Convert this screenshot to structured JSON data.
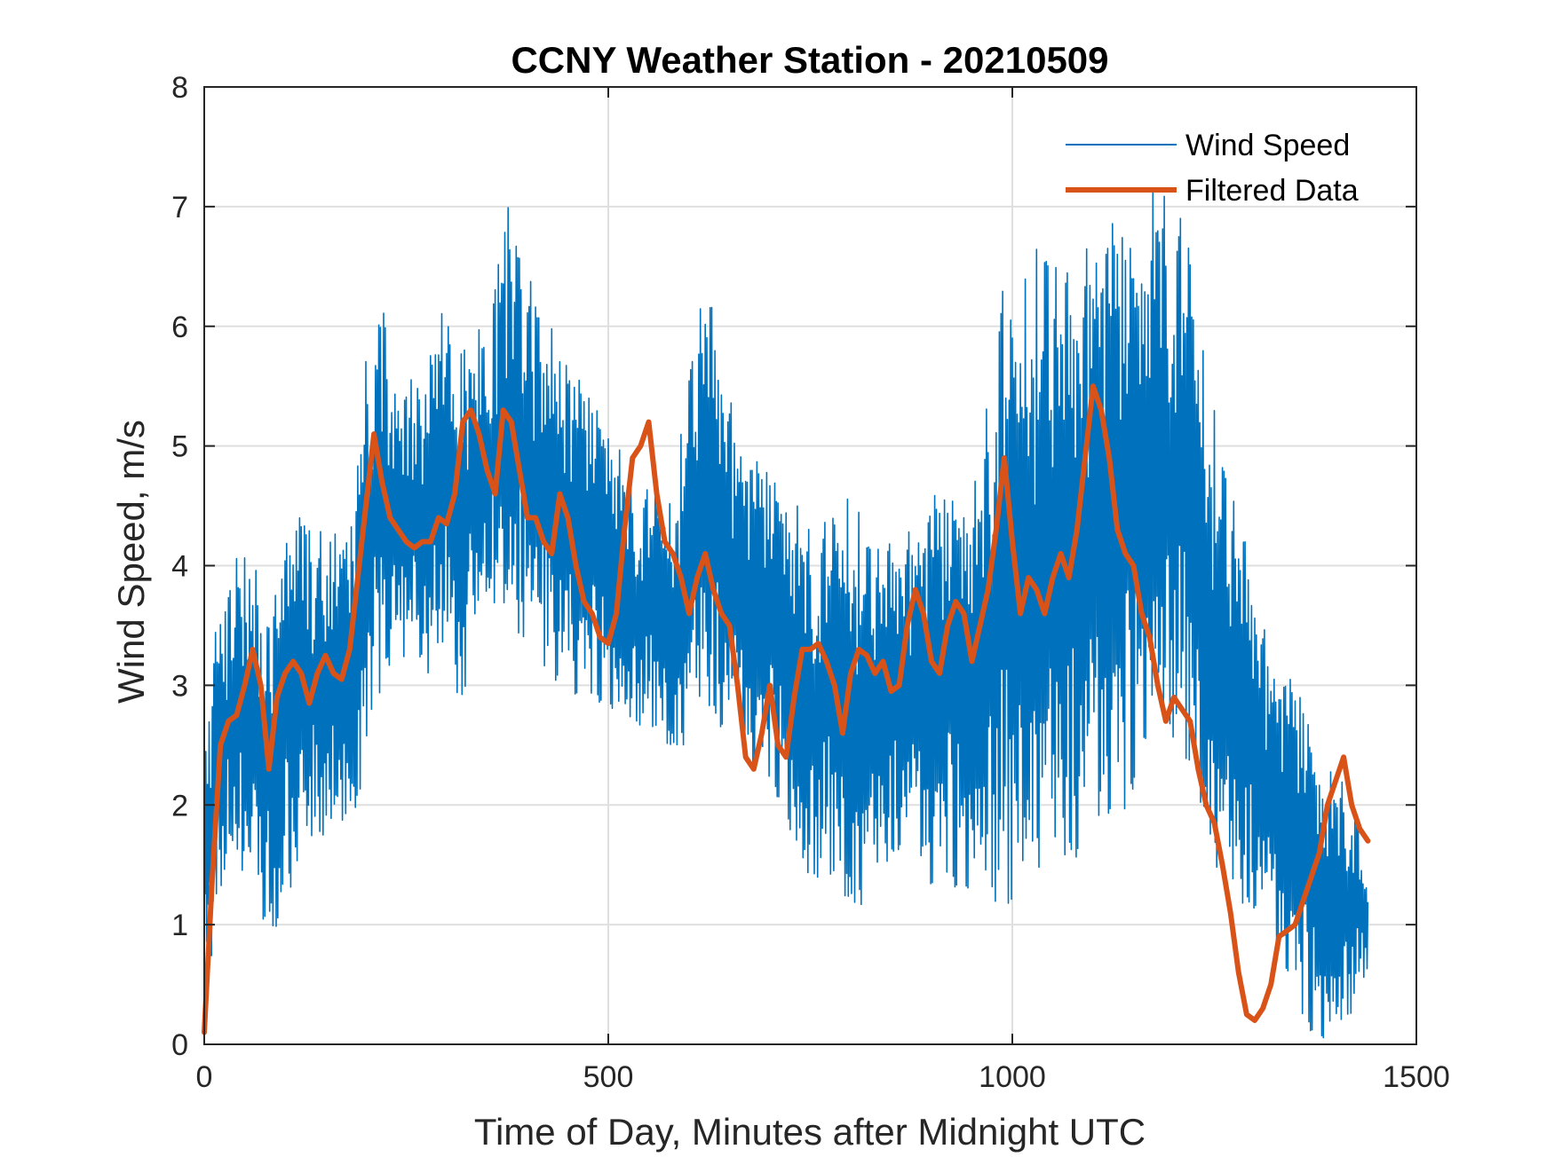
{
  "chart_data": {
    "type": "line",
    "title": "CCNY Weather Station - 20210509",
    "xlabel": "Time of Day, Minutes after Midnight UTC",
    "ylabel": "Wind Speed, m/s",
    "xlim": [
      0,
      1500
    ],
    "ylim": [
      0,
      8
    ],
    "xticks": [
      0,
      500,
      1000,
      1500
    ],
    "yticks": [
      0,
      1,
      2,
      3,
      4,
      5,
      6,
      7,
      8
    ],
    "xtick_labels": [
      "0",
      "500",
      "1000",
      "1500"
    ],
    "ytick_labels": [
      "0",
      "1",
      "2",
      "3",
      "4",
      "5",
      "6",
      "7",
      "8"
    ],
    "grid": true,
    "legend_position": "top-right",
    "colors": {
      "raw": "#0072BD",
      "filtered": "#D95319",
      "grid": "#DFDFDF",
      "axes": "#262626"
    },
    "series": [
      {
        "name": "Wind Speed",
        "style": "thin",
        "sample_step_minutes": 1,
        "envelope_x": [
          0,
          20,
          40,
          60,
          80,
          100,
          120,
          140,
          160,
          180,
          200,
          220,
          240,
          260,
          280,
          300,
          320,
          340,
          360,
          380,
          400,
          420,
          440,
          460,
          480,
          500,
          520,
          540,
          560,
          580,
          600,
          620,
          640,
          660,
          680,
          700,
          720,
          740,
          760,
          780,
          800,
          820,
          840,
          860,
          880,
          900,
          920,
          940,
          960,
          980,
          1000,
          1020,
          1040,
          1060,
          1080,
          1100,
          1120,
          1140,
          1160,
          1180,
          1200,
          1220,
          1240,
          1260,
          1280,
          1300,
          1320,
          1340,
          1360,
          1380,
          1400,
          1420,
          1440
        ],
        "envelope_min": [
          0.2,
          1.2,
          1.5,
          1.3,
          0.8,
          1.1,
          1.5,
          1.6,
          1.9,
          1.8,
          2.3,
          3.0,
          3.2,
          3.1,
          3.1,
          3.2,
          2.6,
          3.4,
          3.6,
          3.4,
          3.3,
          3.1,
          3.0,
          2.9,
          2.9,
          2.8,
          2.6,
          2.6,
          2.5,
          2.3,
          2.6,
          2.9,
          2.6,
          2.5,
          2.3,
          2.2,
          1.9,
          1.2,
          1.3,
          1.2,
          0.9,
          1.3,
          1.5,
          1.6,
          1.6,
          1.3,
          1.4,
          1.2,
          1.3,
          1.0,
          0.8,
          1.4,
          1.5,
          1.6,
          1.5,
          1.7,
          1.9,
          1.9,
          2.4,
          2.6,
          2.4,
          2.0,
          1.6,
          1.4,
          1.2,
          1.1,
          0.9,
          0.6,
          0.2,
          0.0,
          0.0,
          0.2,
          0.6
        ],
        "envelope_max": [
          2.7,
          3.8,
          4.2,
          4.0,
          3.9,
          4.2,
          4.5,
          4.4,
          4.3,
          4.2,
          5.8,
          6.2,
          5.9,
          5.7,
          5.8,
          6.3,
          6.2,
          6.0,
          6.4,
          7.2,
          6.5,
          6.2,
          5.9,
          5.6,
          5.4,
          5.2,
          4.9,
          4.7,
          4.6,
          4.5,
          5.7,
          6.5,
          5.7,
          5.2,
          4.9,
          4.8,
          4.6,
          4.5,
          4.4,
          4.4,
          4.6,
          4.3,
          4.2,
          4.2,
          4.4,
          4.6,
          4.6,
          4.6,
          4.8,
          6.6,
          6.0,
          6.5,
          6.8,
          6.6,
          6.3,
          7.0,
          6.9,
          6.8,
          6.6,
          7.4,
          7.2,
          6.6,
          5.6,
          5.0,
          4.5,
          3.8,
          3.3,
          3.1,
          2.9,
          2.3,
          2.3,
          2.3,
          1.2
        ]
      },
      {
        "name": "Filtered Data",
        "style": "thick",
        "x": [
          0,
          10,
          20,
          30,
          40,
          50,
          60,
          70,
          80,
          90,
          100,
          110,
          120,
          130,
          140,
          150,
          160,
          170,
          180,
          190,
          200,
          210,
          220,
          230,
          240,
          250,
          260,
          270,
          280,
          290,
          300,
          310,
          320,
          330,
          340,
          350,
          360,
          370,
          380,
          390,
          400,
          410,
          420,
          430,
          440,
          450,
          460,
          470,
          480,
          490,
          500,
          510,
          520,
          530,
          540,
          550,
          560,
          570,
          580,
          590,
          600,
          610,
          620,
          630,
          640,
          650,
          660,
          670,
          680,
          690,
          700,
          710,
          720,
          730,
          740,
          750,
          760,
          770,
          780,
          790,
          800,
          810,
          820,
          830,
          840,
          850,
          860,
          870,
          880,
          890,
          900,
          910,
          920,
          930,
          940,
          950,
          960,
          970,
          980,
          990,
          1000,
          1010,
          1020,
          1030,
          1040,
          1050,
          1060,
          1070,
          1080,
          1090,
          1100,
          1110,
          1120,
          1130,
          1140,
          1150,
          1160,
          1170,
          1180,
          1190,
          1200,
          1210,
          1220,
          1230,
          1240,
          1250,
          1260,
          1270,
          1280,
          1290,
          1300,
          1310,
          1320,
          1330,
          1340,
          1350,
          1360,
          1370,
          1380,
          1390,
          1400,
          1410,
          1420,
          1430,
          1440
        ],
        "values": [
          0.1,
          1.4,
          2.5,
          2.7,
          2.75,
          3.0,
          3.3,
          3.0,
          2.3,
          2.9,
          3.1,
          3.2,
          3.1,
          2.85,
          3.1,
          3.25,
          3.1,
          3.05,
          3.3,
          3.9,
          4.5,
          5.1,
          4.7,
          4.4,
          4.3,
          4.2,
          4.15,
          4.2,
          4.2,
          4.4,
          4.35,
          4.6,
          5.2,
          5.3,
          5.1,
          4.8,
          4.6,
          5.3,
          5.2,
          4.8,
          4.4,
          4.4,
          4.2,
          4.1,
          4.6,
          4.4,
          4.0,
          3.7,
          3.6,
          3.4,
          3.35,
          3.6,
          4.3,
          4.9,
          5.0,
          5.2,
          4.6,
          4.2,
          4.1,
          3.9,
          3.6,
          3.9,
          4.1,
          3.8,
          3.6,
          3.5,
          3.0,
          2.4,
          2.3,
          2.6,
          3.0,
          2.5,
          2.4,
          2.9,
          3.3,
          3.3,
          3.35,
          3.2,
          3.0,
          2.6,
          3.1,
          3.3,
          3.25,
          3.1,
          3.2,
          2.95,
          3.0,
          3.5,
          3.8,
          3.6,
          3.2,
          3.1,
          3.5,
          3.7,
          3.6,
          3.2,
          3.5,
          3.8,
          4.3,
          4.9,
          4.2,
          3.6,
          3.9,
          3.8,
          3.6,
          3.9,
          4.1,
          3.9,
          4.3,
          4.9,
          5.5,
          5.3,
          4.9,
          4.3,
          4.1,
          4.0,
          3.6,
          3.4,
          3.0,
          2.7,
          2.9,
          2.8,
          2.7,
          2.3,
          2.0,
          1.85,
          1.5,
          1.1,
          0.6,
          0.25,
          0.2,
          0.3,
          0.5,
          0.9,
          0.95,
          1.0,
          1.2,
          1.4,
          1.6,
          2.0,
          2.2,
          2.4,
          2.0,
          1.8,
          1.7
        ]
      }
    ]
  }
}
